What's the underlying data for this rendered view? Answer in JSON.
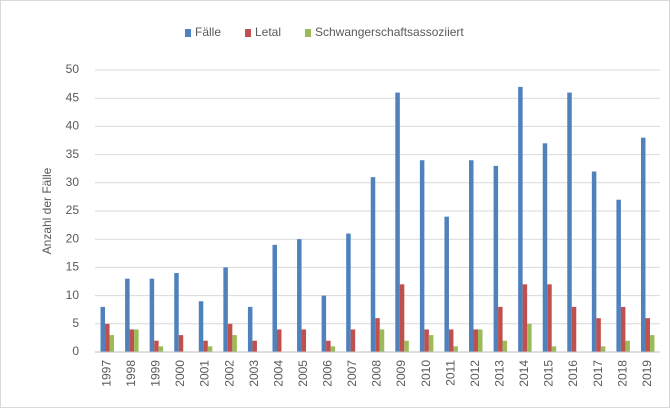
{
  "chart_data": {
    "type": "bar",
    "y_label": "Anzahl der Fälle",
    "categories": [
      "1997",
      "1998",
      "1999",
      "2000",
      "2001",
      "2002",
      "2003",
      "2004",
      "2005",
      "2006",
      "2007",
      "2008",
      "2009",
      "2010",
      "2011",
      "2012",
      "2013",
      "2014",
      "2015",
      "2016",
      "2017",
      "2018",
      "2019"
    ],
    "series": [
      {
        "name": "Fälle",
        "color": "#4f81bd",
        "values": [
          8,
          13,
          13,
          14,
          9,
          15,
          8,
          19,
          20,
          10,
          21,
          31,
          46,
          34,
          24,
          34,
          33,
          47,
          37,
          46,
          32,
          27,
          38
        ]
      },
      {
        "name": "Letal",
        "color": "#c0504d",
        "values": [
          5,
          4,
          2,
          3,
          2,
          5,
          2,
          4,
          4,
          2,
          4,
          6,
          12,
          4,
          4,
          4,
          8,
          12,
          12,
          8,
          6,
          8,
          6
        ]
      },
      {
        "name": "Schwangerschaftsassoziiert",
        "color": "#9bbb59",
        "values": [
          3,
          4,
          1,
          0,
          1,
          3,
          0,
          0,
          0,
          1,
          0,
          4,
          2,
          3,
          1,
          4,
          2,
          5,
          1,
          0,
          1,
          2,
          3
        ]
      }
    ],
    "ylim": [
      0,
      50
    ],
    "yticks": [
      0,
      5,
      10,
      15,
      20,
      25,
      30,
      35,
      40,
      45,
      50
    ],
    "grid": true,
    "legend": "top"
  }
}
